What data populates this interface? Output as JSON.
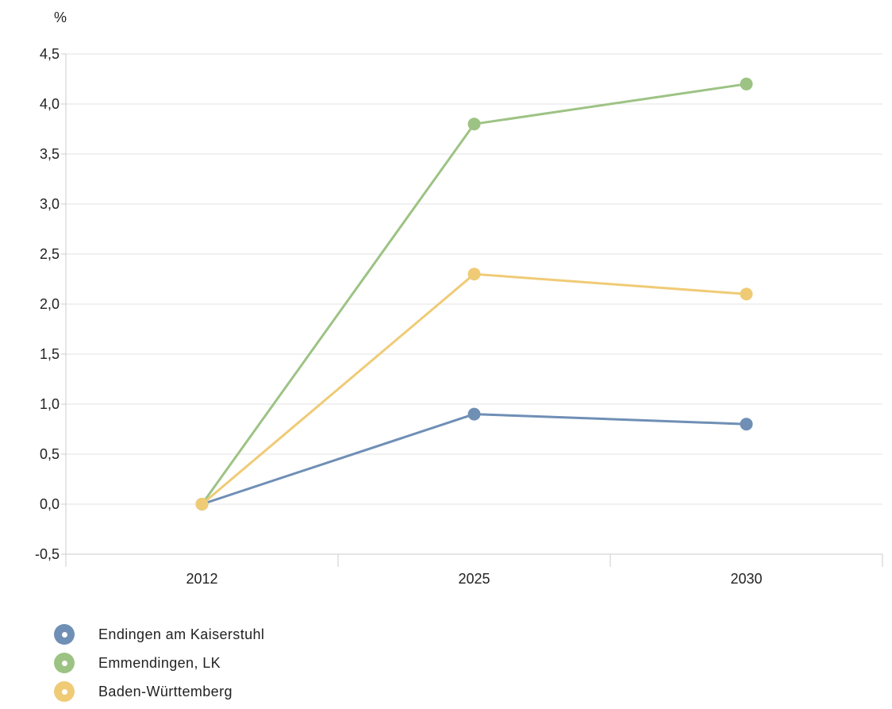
{
  "chart_data": {
    "type": "line",
    "title": "",
    "unit_label": "%",
    "xlabel": "",
    "ylabel": "%",
    "categories": [
      "2012",
      "2025",
      "2030"
    ],
    "ylim": [
      -0.5,
      4.5
    ],
    "yticks": [
      "-0,5",
      "0,0",
      "0,5",
      "1,0",
      "1,5",
      "2,0",
      "2,5",
      "3,0",
      "3,5",
      "4,0",
      "4,5"
    ],
    "ytick_values": [
      -0.5,
      0.0,
      0.5,
      1.0,
      1.5,
      2.0,
      2.5,
      3.0,
      3.5,
      4.0,
      4.5
    ],
    "grid": true,
    "legend_position": "bottom-left",
    "series": [
      {
        "name": "Endingen am Kaiserstuhl",
        "color": "#6f8fb5",
        "values": [
          0.0,
          0.9,
          0.8
        ]
      },
      {
        "name": "Emmendingen, LK",
        "color": "#9dc384",
        "values": [
          0.0,
          3.8,
          4.2
        ]
      },
      {
        "name": "Baden-Württemberg",
        "color": "#f0cb76",
        "values": [
          0.0,
          2.3,
          2.1
        ]
      }
    ]
  }
}
